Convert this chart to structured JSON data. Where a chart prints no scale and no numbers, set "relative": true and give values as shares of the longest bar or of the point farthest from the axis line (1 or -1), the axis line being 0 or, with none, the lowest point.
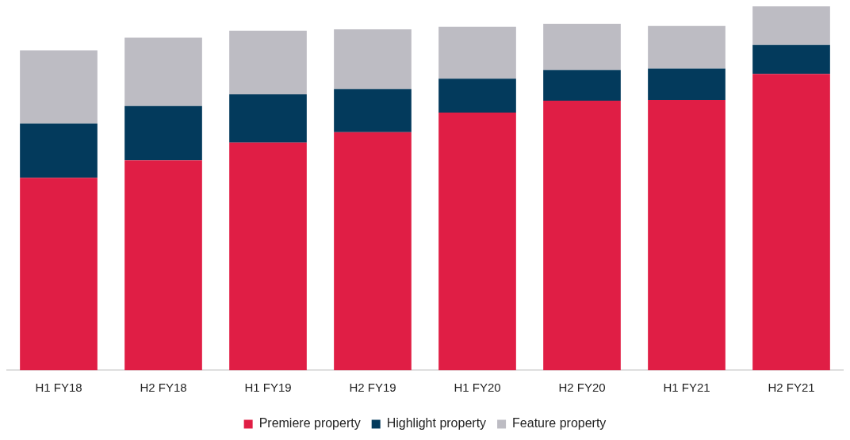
{
  "chart_data": {
    "type": "bar",
    "stacked": true,
    "relative": true,
    "legend": "bottom",
    "grid": false,
    "categories": [
      "H1 FY18",
      "H2 FY18",
      "H1 FY19",
      "H2 FY19",
      "H1 FY20",
      "H2 FY20",
      "H1 FY21",
      "H2 FY21"
    ],
    "series": [
      {
        "name": "Premiere property",
        "color": "#e01e45",
        "values": [
          0.529,
          0.577,
          0.626,
          0.654,
          0.708,
          0.741,
          0.743,
          0.814
        ]
      },
      {
        "name": "Highlight property",
        "color": "#033a5c",
        "values": [
          0.149,
          0.149,
          0.132,
          0.119,
          0.093,
          0.084,
          0.086,
          0.08
        ]
      },
      {
        "name": "Feature property",
        "color": "#bdbcc3",
        "values": [
          0.201,
          0.188,
          0.175,
          0.164,
          0.143,
          0.127,
          0.117,
          0.106
        ]
      }
    ]
  }
}
